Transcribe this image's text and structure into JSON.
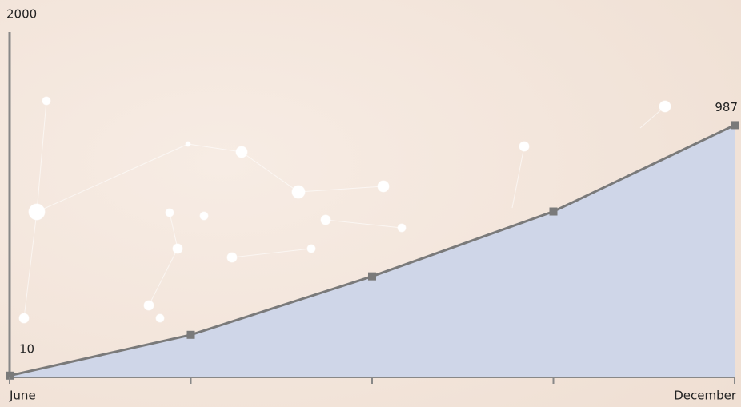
{
  "chart_data": {
    "type": "area",
    "year": "2000",
    "categories": [
      "June",
      null,
      null,
      null,
      "December"
    ],
    "values": [
      10,
      169,
      397,
      650,
      987
    ],
    "value_labels": [
      "10",
      null,
      null,
      null,
      "987"
    ],
    "ylim": [
      0,
      1350
    ],
    "line_color": "#7a7a7a",
    "fill_color": "#cfd6e8"
  }
}
